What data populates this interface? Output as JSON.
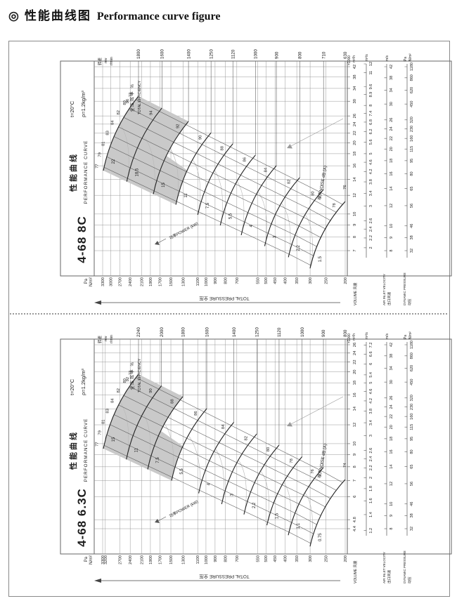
{
  "page_title": {
    "icon": "◎",
    "zh": "性能曲线图",
    "en": "Performance curve figure"
  },
  "chart_data": [
    {
      "type": "line",
      "model": "4-68 8C",
      "title_zh": "性能曲线",
      "title_en": "PERFORMANCE CURVE",
      "conditions": [
        "t=20°C",
        "ρ=1.2kg/m³"
      ],
      "speed_header": [
        "转速",
        "rev",
        "r/min"
      ],
      "speeds_rpm": [
        1800,
        1600,
        1400,
        1250,
        1120,
        1000,
        900,
        800,
        710,
        630
      ],
      "noise_label": "噪声NOISE dB (A)",
      "noise_values": [
        96,
        94,
        92,
        90,
        88,
        86,
        84,
        82,
        80,
        78
      ],
      "noise_extra": 76,
      "power_label": "功率POWER (kW)",
      "power_values_kw": [
        22,
        18.5,
        15,
        11,
        7.5,
        5.5,
        4,
        3,
        2.2,
        1.5
      ],
      "efficiency_header": [
        "全压效率 %",
        "TOTAL EFFICIENCY"
      ],
      "efficiency_values": [
        77,
        79,
        81,
        83,
        84,
        82,
        80,
        77
      ],
      "pressure_axis": {
        "unit": "Pa N/m²",
        "label": "TOTAL PRESSURE 全压",
        "values": [
          3300,
          3000,
          2700,
          2400,
          2100,
          1900,
          1700,
          1500,
          1300,
          1100,
          1000,
          900,
          800,
          700,
          550,
          500,
          450,
          400,
          350,
          300,
          250,
          200
        ],
        "range": [
          200,
          3300
        ]
      },
      "volume_axis": {
        "label": "VOLUME 风量",
        "unit": "×1000 m³/h",
        "values": [
          7,
          8,
          9,
          10,
          12,
          14,
          16,
          18,
          20,
          22,
          24,
          26,
          30,
          34,
          38,
          42
        ],
        "unit2": "m³/s",
        "values2": [
          2,
          2.2,
          2.4,
          2.6,
          3,
          3.4,
          3.8,
          4.2,
          4.6,
          5,
          5.6,
          6.2,
          6.8,
          7.4,
          8,
          8.9,
          9.6,
          11,
          12
        ],
        "range": [
          7,
          42
        ]
      },
      "velocity_axis": {
        "label": "AIR INLET VELOCITY 出口风速",
        "unit": "m/s",
        "values": [
          8,
          9,
          10,
          12,
          14,
          16,
          18,
          20,
          22,
          24,
          26,
          30,
          34,
          38,
          42
        ]
      },
      "dynamic_axis": {
        "label": "DYNAMIC PRESSURE 动压",
        "unit": "Pa N/m²",
        "values": [
          32,
          38,
          46,
          56,
          65,
          80,
          95,
          115,
          160,
          230,
          320,
          450,
          620,
          860,
          1180
        ]
      }
    },
    {
      "type": "line",
      "model": "4-68 6.3C",
      "title_zh": "性能曲线",
      "title_en": "PERFORMANCE CURVE",
      "conditions": [
        "t=20°C",
        "ρ=1.2kg/m³"
      ],
      "speed_header": [
        "转速",
        "rev",
        "r/min"
      ],
      "speeds_rpm": [
        2240,
        2000,
        1800,
        1600,
        1400,
        1250,
        1120,
        1000,
        900,
        800
      ],
      "noise_label": "噪声NOISE dB (A)",
      "noise_values": [
        92,
        90,
        88,
        86,
        84,
        82,
        80,
        78,
        76
      ],
      "noise_extra": 74,
      "power_label": "功率POWER (kW)",
      "power_values_kw": [
        15,
        11,
        7.5,
        5.5,
        4,
        3,
        2.2,
        1.5,
        1.1,
        0.75
      ],
      "efficiency_header": [
        "全压效率 %",
        "TOTAL EFFICIENCY"
      ],
      "efficiency_values": [
        77,
        79,
        81,
        83,
        84,
        82,
        80,
        77
      ],
      "pressure_axis": {
        "unit": "Pa N/m²",
        "label": "TOTAL PRESSURE 全压",
        "values": [
          3300,
          3200,
          2700,
          2400,
          2100,
          1900,
          1700,
          1500,
          1300,
          1100,
          1000,
          900,
          800,
          700,
          550,
          500,
          450,
          400,
          350,
          300,
          250,
          200
        ],
        "range": [
          200,
          3300
        ]
      },
      "volume_axis": {
        "label": "VOLUME 风量",
        "unit": "×1000 m³/h",
        "values": [
          4.4,
          4.8,
          6,
          7,
          8,
          9,
          10,
          12,
          14,
          16,
          18,
          20,
          22,
          24,
          26
        ],
        "unit2": "m³/s",
        "values2": [
          1.2,
          1.4,
          1.6,
          1.8,
          2,
          2.2,
          2.4,
          2.6,
          3,
          3.4,
          3.8,
          4.2,
          4.6,
          5,
          5.4,
          6,
          6.6,
          7.2
        ],
        "range": [
          4.4,
          26
        ]
      },
      "velocity_axis": {
        "label": "AIR INLET VELOCITY 出口风速",
        "unit": "m/s",
        "values": [
          8,
          9,
          10,
          12,
          14,
          16,
          18,
          20,
          22,
          24,
          26,
          30,
          34,
          38,
          42
        ]
      },
      "dynamic_axis": {
        "label": "DYNAMIC PRESSURE 动压",
        "unit": "Pa N/m²",
        "values": [
          32,
          38,
          46,
          56,
          65,
          80,
          95,
          115,
          160,
          230,
          320,
          450,
          620,
          860,
          1180
        ]
      }
    }
  ]
}
